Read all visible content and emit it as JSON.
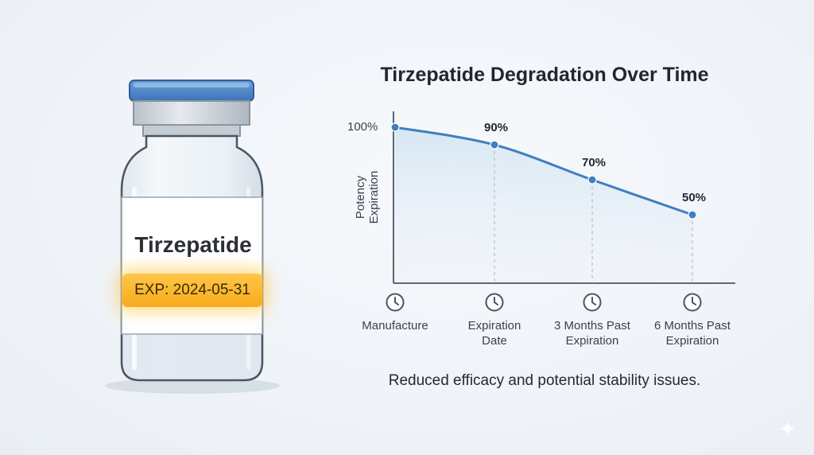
{
  "vial": {
    "name": "Tirzepatide",
    "exp_label": "EXP: 2024-05-31"
  },
  "chart_data": {
    "type": "line",
    "title": "Tirzepatide Degradation Over Time",
    "ylabel_lines": [
      "Potency",
      "Expiration"
    ],
    "y_tick_label": "100%",
    "categories": [
      [
        "Manufacture"
      ],
      [
        "Expiration",
        "Date"
      ],
      [
        "3 Months Past",
        "Expiration"
      ],
      [
        "6 Months Past",
        "Expiration"
      ]
    ],
    "values": [
      100,
      90,
      70,
      50
    ],
    "data_labels": [
      "",
      "90%",
      "70%",
      "50%"
    ],
    "ylim": [
      0,
      100
    ],
    "x_icon": "clock-icon",
    "line_color": "#3f7fc1",
    "fill_color": "#d6e6f4"
  },
  "caption": "Reduced efficacy and potential stability issues."
}
